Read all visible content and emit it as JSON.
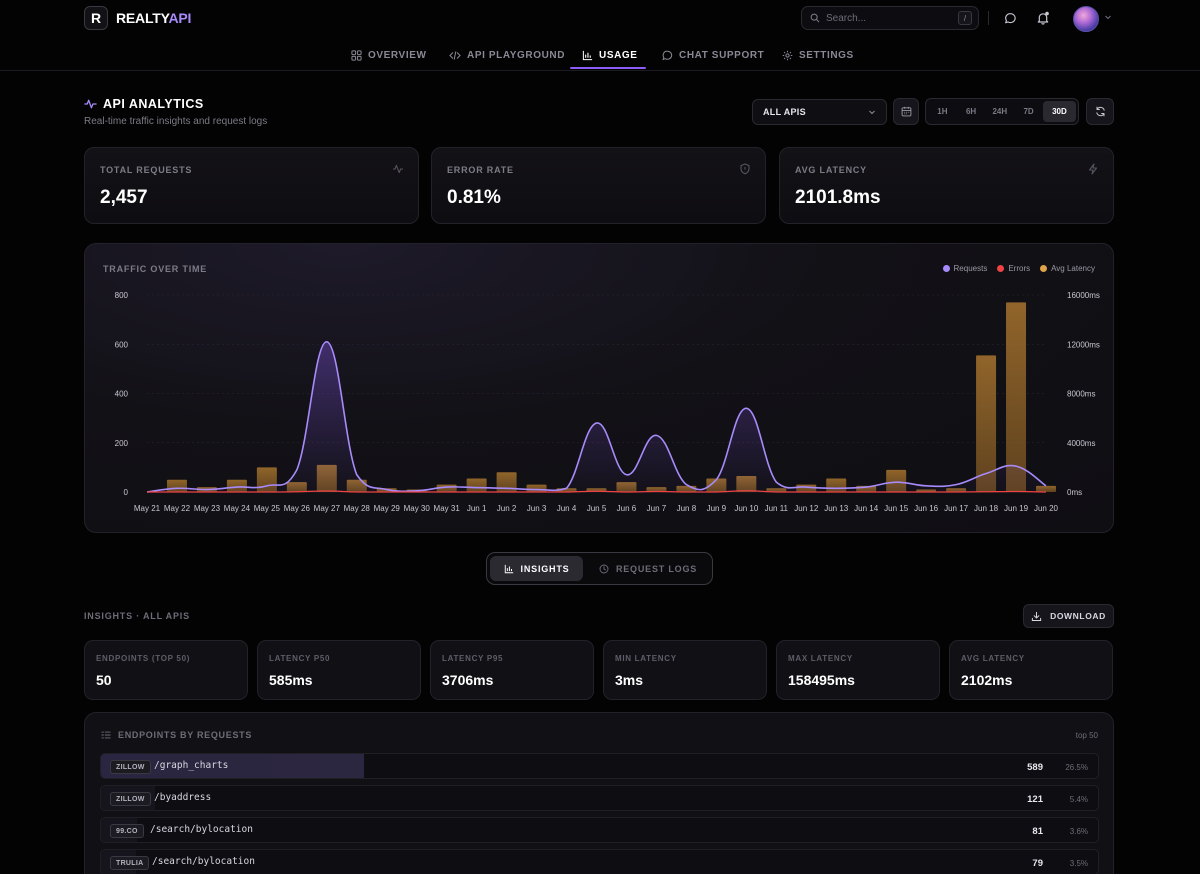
{
  "header": {
    "logo_letter": "R",
    "logo_main": "REALTY",
    "logo_accent": "API",
    "search_placeholder": "Search...",
    "search_shortcut": "/"
  },
  "nav": {
    "tabs": [
      {
        "label": "OVERVIEW",
        "icon": "grid-icon"
      },
      {
        "label": "API PLAYGROUND",
        "icon": "code-icon"
      },
      {
        "label": "USAGE",
        "icon": "bar-chart-icon",
        "active": true
      },
      {
        "label": "CHAT SUPPORT",
        "icon": "chat-icon"
      },
      {
        "label": "SETTINGS",
        "icon": "gear-icon"
      }
    ]
  },
  "page": {
    "title": "API ANALYTICS",
    "subtitle": "Real-time traffic insights and request logs",
    "api_select": "ALL APIS",
    "ranges": [
      "1H",
      "6H",
      "24H",
      "7D",
      "30D"
    ],
    "active_range": "30D"
  },
  "kpis": [
    {
      "label": "TOTAL REQUESTS",
      "value": "2,457",
      "icon": "activity-icon"
    },
    {
      "label": "ERROR RATE",
      "value": "0.81%",
      "icon": "shield-icon"
    },
    {
      "label": "AVG LATENCY",
      "value": "2101.8ms",
      "icon": "bolt-icon"
    }
  ],
  "chart": {
    "title": "TRAFFIC OVER TIME",
    "legend": [
      "Requests",
      "Errors",
      "Avg Latency"
    ],
    "colors": {
      "requests": "#a78bfa",
      "errors": "#ef4444",
      "latency": "#c08a3e"
    }
  },
  "chart_data": {
    "type": "line",
    "title": "TRAFFIC OVER TIME",
    "categories": [
      "May 21",
      "May 22",
      "May 23",
      "May 24",
      "May 25",
      "May 26",
      "May 27",
      "May 28",
      "May 29",
      "May 30",
      "May 31",
      "Jun 1",
      "Jun 2",
      "Jun 3",
      "Jun 4",
      "Jun 5",
      "Jun 6",
      "Jun 7",
      "Jun 8",
      "Jun 9",
      "Jun 10",
      "Jun 11",
      "Jun 12",
      "Jun 13",
      "Jun 14",
      "Jun 15",
      "Jun 16",
      "Jun 17",
      "Jun 18",
      "Jun 19",
      "Jun 20"
    ],
    "y_left": {
      "ticks": [
        "0",
        "200",
        "400",
        "600",
        "800"
      ],
      "ylim": [
        0,
        800
      ]
    },
    "y_right": {
      "ticks": [
        "0ms",
        "4000ms",
        "8000ms",
        "12000ms",
        "16000ms"
      ],
      "ylim": [
        0,
        16000
      ]
    },
    "series": [
      {
        "name": "Requests",
        "type": "line",
        "axis": "left",
        "values": [
          0,
          15,
          10,
          20,
          25,
          90,
          610,
          70,
          10,
          5,
          20,
          18,
          15,
          10,
          15,
          280,
          70,
          230,
          30,
          50,
          340,
          40,
          20,
          15,
          20,
          40,
          25,
          30,
          75,
          105,
          25
        ]
      },
      {
        "name": "Errors",
        "type": "line",
        "axis": "left",
        "values": [
          0,
          0,
          0,
          0,
          0,
          1,
          4,
          0,
          0,
          0,
          0,
          0,
          0,
          0,
          0,
          3,
          0,
          2,
          0,
          0,
          5,
          0,
          0,
          0,
          0,
          0,
          0,
          0,
          1,
          2,
          0
        ]
      },
      {
        "name": "Avg Latency",
        "type": "bar",
        "axis": "right",
        "values": [
          0,
          1000,
          400,
          1000,
          2000,
          800,
          2200,
          1000,
          300,
          200,
          600,
          1100,
          1600,
          600,
          300,
          300,
          800,
          400,
          500,
          1100,
          1300,
          300,
          600,
          1100,
          500,
          1800,
          200,
          300,
          11100,
          15400,
          500
        ]
      }
    ]
  },
  "view_toggle": {
    "insights": "INSIGHTS",
    "logs": "REQUEST LOGS"
  },
  "insights": {
    "title": "INSIGHTS · ALL APIS",
    "download": "DOWNLOAD",
    "stats": [
      {
        "label": "ENDPOINTS (TOP 50)",
        "value": "50"
      },
      {
        "label": "LATENCY P50",
        "value": "585ms"
      },
      {
        "label": "LATENCY P95",
        "value": "3706ms"
      },
      {
        "label": "MIN LATENCY",
        "value": "3ms"
      },
      {
        "label": "MAX LATENCY",
        "value": "158495ms"
      },
      {
        "label": "AVG LATENCY",
        "value": "2102ms"
      }
    ]
  },
  "endpoints": {
    "title": "ENDPOINTS BY REQUESTS",
    "top_label": "top 50",
    "rows": [
      {
        "source": "ZILLOW",
        "path": "/graph_charts",
        "count": "589",
        "pct": "26.5%",
        "share": 0.265
      },
      {
        "source": "ZILLOW",
        "path": "/byaddress",
        "count": "121",
        "pct": "5.4%",
        "share": 0.054
      },
      {
        "source": "99.CO",
        "path": "/search/bylocation",
        "count": "81",
        "pct": "3.6%",
        "share": 0.036
      },
      {
        "source": "TRULIA",
        "path": "/search/bylocation",
        "count": "79",
        "pct": "3.5%",
        "share": 0.035
      }
    ]
  }
}
